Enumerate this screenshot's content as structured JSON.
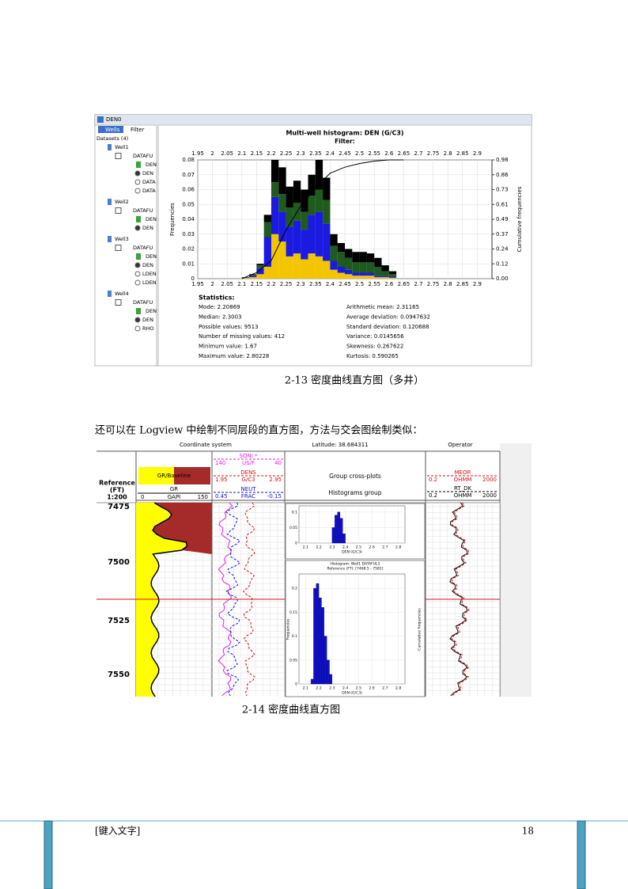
{
  "figure1": {
    "window_title": "DEN0",
    "tabs": [
      "Wells",
      "Filter"
    ],
    "tree_title": "Datasets (4)",
    "tree": [
      {
        "well": "Well1",
        "dataset": "DATAFU",
        "curve": "DEN",
        "options": [
          "DEN",
          "DATA",
          "DATA"
        ]
      },
      {
        "well": "Well2",
        "dataset": "DATAFU",
        "curve": "DEN",
        "options": [
          "DEN"
        ]
      },
      {
        "well": "Well3",
        "dataset": "DATAFU",
        "curve": "DEN",
        "options": [
          "DEN",
          "LDEN",
          "LDEN"
        ]
      },
      {
        "well": "Well4",
        "dataset": "DATAFU",
        "curve": "DEN",
        "options": [
          "DEN",
          "RHO"
        ]
      }
    ],
    "chart": {
      "type": "histogram",
      "title": "Multi-well histogram: DEN (G/C3)",
      "subtitle": "Filter:",
      "ylabel": "Frequencies",
      "y2label": "Cumulative frequencies",
      "xlim": [
        1.95,
        2.95
      ],
      "xticks": [
        1.95,
        2,
        2.05,
        2.1,
        2.15,
        2.2,
        2.25,
        2.3,
        2.35,
        2.4,
        2.45,
        2.5,
        2.55,
        2.6,
        2.65,
        2.7,
        2.75,
        2.8,
        2.85,
        2.9
      ],
      "ylim": [
        0,
        0.08
      ],
      "yticks": [
        0,
        0.01,
        0.02,
        0.03,
        0.04,
        0.05,
        0.06,
        0.07,
        0.08
      ],
      "y2lim": [
        0,
        0.98
      ],
      "y2ticks": [
        {
          "value": 0,
          "label": "0.00"
        },
        {
          "value": 0.1225,
          "label": "0.12"
        },
        {
          "value": 0.245,
          "label": "0.24"
        },
        {
          "value": 0.3675,
          "label": "0.37"
        },
        {
          "value": 0.49,
          "label": "0.49"
        },
        {
          "value": 0.6125,
          "label": "0.61"
        },
        {
          "value": 0.735,
          "label": "0.73"
        },
        {
          "value": 0.8575,
          "label": "0.86"
        },
        {
          "value": 0.98,
          "label": "0.98"
        }
      ],
      "grid": true,
      "bins": [
        2.1,
        2.125,
        2.15,
        2.175,
        2.2,
        2.225,
        2.25,
        2.275,
        2.3,
        2.325,
        2.35,
        2.375,
        2.4,
        2.425,
        2.45,
        2.475,
        2.5,
        2.525,
        2.55,
        2.575,
        2.6,
        2.625
      ],
      "series": [
        {
          "color": "#f2c500",
          "values": [
            0.0005,
            0.001,
            0.003,
            0.008,
            0.03,
            0.025,
            0.015,
            0.017,
            0.013,
            0.017,
            0.015,
            0.012,
            0.006,
            0.004,
            0.003,
            0.002,
            0.002,
            0.002,
            0.001,
            0.001,
            0.0005
          ]
        },
        {
          "color": "#1a1ae0",
          "values": [
            0.0003,
            0.001,
            0.004,
            0.02,
            0.025,
            0.02,
            0.02,
            0.022,
            0.02,
            0.026,
            0.03,
            0.025,
            0.006,
            0.004,
            0.003,
            0.002,
            0.002,
            0.002,
            0.001,
            0.001,
            0.0005
          ]
        },
        {
          "color": "#1f5a1f",
          "values": [
            0.0002,
            0.0005,
            0.002,
            0.01,
            0.01,
            0.012,
            0.013,
            0.012,
            0.012,
            0.013,
            0.015,
            0.016,
            0.01,
            0.01,
            0.008,
            0.007,
            0.007,
            0.007,
            0.006,
            0.003,
            0.002
          ]
        },
        {
          "color": "#000000",
          "values": [
            0,
            0.0005,
            0.001,
            0.005,
            0.015,
            0.018,
            0.014,
            0.015,
            0.015,
            0.014,
            0.02,
            0.015,
            0.008,
            0.006,
            0.006,
            0.007,
            0.007,
            0.006,
            0.006,
            0.004,
            0.002
          ]
        }
      ],
      "cumulative": {
        "axis": "y2",
        "color": "#000000",
        "x": [
          2.1,
          2.15,
          2.2,
          2.25,
          2.3,
          2.35,
          2.4,
          2.45,
          2.5,
          2.55,
          2.6,
          2.65
        ],
        "y": [
          0,
          0.05,
          0.15,
          0.4,
          0.6,
          0.75,
          0.87,
          0.92,
          0.95,
          0.97,
          0.98,
          0.98
        ]
      }
    },
    "statistics": {
      "title": "Statistics:",
      "left": [
        "Mode: 2.20869",
        "Median: 2.3003",
        "Possible values: 9513",
        "Number of missing values: 412",
        "Minimum value: 1.67",
        "Maximum value: 2.80228"
      ],
      "right": [
        "Arithmetic mean: 2.31165",
        "Average deviation: 0.0947632",
        "Standard deviation: 0.120688",
        "Variance: 0.0145656",
        "Skewness: 0.267622",
        "Kurtosis: 0.590265"
      ]
    }
  },
  "caption1": "2-13 密度曲线直方图（多井）",
  "paragraph": "还可以在 Logview 中绘制不同层段的直方图，方法与交会图绘制类似：",
  "figure2": {
    "header": {
      "top": [
        "Coordinate system",
        "Latitude: 38.684311",
        "Operator"
      ],
      "reference": "Reference",
      "unit": "(FT)",
      "scale": "1:200",
      "gr": {
        "fill": "GR/Baseline",
        "curve": "GR",
        "min": "0",
        "unit": "GAPI",
        "max": "150"
      },
      "curves": [
        {
          "name": "SONI *",
          "min": "140",
          "unit": "US/F",
          "max": "40",
          "color": "#e020e0"
        },
        {
          "name": "DENS",
          "min": "1.95",
          "unit": "G/C3",
          "max": "2.95",
          "color": "#d01010"
        },
        {
          "name": "NEUT",
          "min": "0.45",
          "unit": "FRAC",
          "max": "-0.15",
          "color": "#1010d0"
        }
      ],
      "groups": [
        "Group cross-plots",
        "Histograms group"
      ],
      "resist": [
        {
          "name": "MEOR",
          "min": "0.2",
          "unit": "OHMM",
          "max": "2000",
          "color": "#d01010"
        },
        {
          "name": "RT_DK",
          "min": "0.2",
          "unit": "OHMM",
          "max": "2000",
          "color": "#000000"
        }
      ]
    },
    "depths": [
      "7475",
      "7500",
      "7525",
      "7550"
    ],
    "hist_top": {
      "type": "histogram",
      "xlim": [
        2.05,
        2.85
      ],
      "xticks": [
        2.1,
        2.2,
        2.3,
        2.4,
        2.5,
        2.6,
        2.7,
        2.8
      ],
      "xlabel": "DEN (G/C3)",
      "ylim": [
        0,
        0.12
      ],
      "yticks": [
        0,
        0.05,
        0.1
      ],
      "bins": [
        2.3,
        2.32,
        2.34,
        2.36,
        2.38,
        2.4
      ],
      "values": [
        0.05,
        0.09,
        0.1,
        0.08,
        0.03
      ],
      "color": "#1010c0"
    },
    "hist_bottom": {
      "type": "histogram",
      "title": "Histogram: Well1 DATAFUL1",
      "subtitle": "Reference (FT): [7468.5 - 7581]",
      "xlim": [
        2.05,
        2.85
      ],
      "xticks": [
        2.1,
        2.2,
        2.3,
        2.4,
        2.5,
        2.6,
        2.7,
        2.8
      ],
      "xlabel": "DEN (G/C3)",
      "ylabel": "Frequencies",
      "y2label": "Cumulative frequencies",
      "ylim": [
        0,
        0.23
      ],
      "yticks": [
        0,
        0.05,
        0.1,
        0.15,
        0.2
      ],
      "bins": [
        2.14,
        2.16,
        2.18,
        2.2,
        2.22,
        2.24,
        2.26,
        2.28,
        2.3
      ],
      "values": [
        0.01,
        0.2,
        0.21,
        0.18,
        0.16,
        0.1,
        0.05,
        0.02
      ],
      "color": "#1010c0"
    }
  },
  "caption2": "2-14  密度曲线直方图",
  "footer": {
    "text": "[键入文字]",
    "page": "18"
  }
}
